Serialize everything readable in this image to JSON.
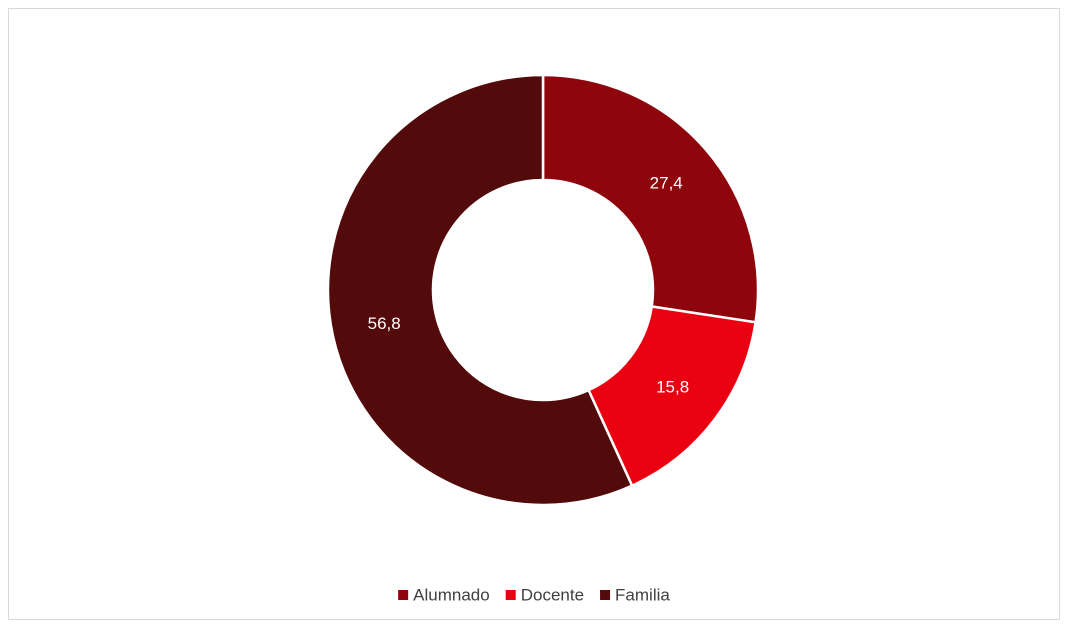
{
  "chart_data": {
    "type": "donut",
    "categories": [
      "Alumnado",
      "Docente",
      "Familia"
    ],
    "values": [
      27.4,
      15.8,
      56.8
    ],
    "value_labels": [
      "27,4",
      "15,8",
      "56,8"
    ],
    "colors": [
      "#8f050c",
      "#eb0012",
      "#520a0b"
    ],
    "legend": "bottom"
  }
}
